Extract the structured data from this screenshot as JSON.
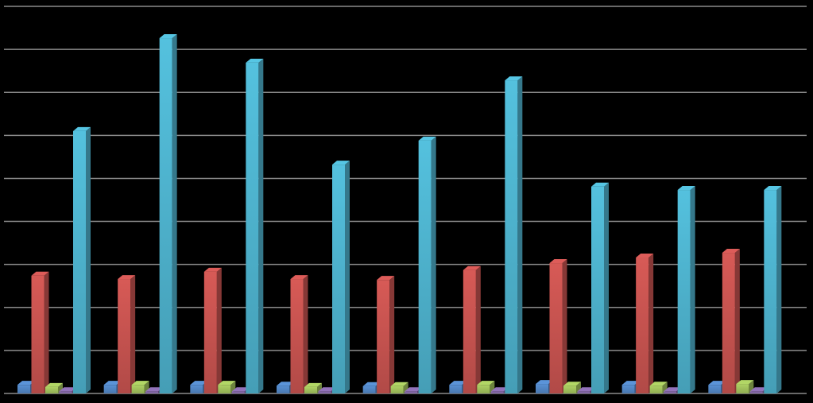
{
  "chart_data": {
    "type": "bar3d",
    "categories": [
      null,
      null,
      null,
      null,
      null,
      null,
      null,
      null,
      null
    ],
    "series": [
      {
        "color": "#4f81bd",
        "values": [
          0.2,
          0.2,
          0.2,
          0.18,
          0.17,
          0.2,
          0.22,
          0.2,
          0.2
        ]
      },
      {
        "color": "#c0504d",
        "values": [
          2.74,
          2.66,
          2.83,
          2.66,
          2.64,
          2.87,
          3.03,
          3.16,
          3.27
        ]
      },
      {
        "color": "#9bbb59",
        "values": [
          0.15,
          0.2,
          0.2,
          0.15,
          0.17,
          0.2,
          0.18,
          0.18,
          0.22
        ]
      },
      {
        "color": "#8064a2",
        "values": [
          0.05,
          0.05,
          0.05,
          0.05,
          0.05,
          0.05,
          0.05,
          0.05,
          0.05
        ]
      },
      {
        "color": "#4bacc6",
        "values": [
          6.1,
          8.26,
          7.69,
          5.32,
          5.88,
          7.28,
          4.81,
          4.73,
          4.73
        ]
      }
    ],
    "ylim": [
      0,
      9
    ],
    "yticks": [
      0,
      1,
      2,
      3,
      4,
      5,
      6,
      7,
      8,
      9
    ],
    "grid": true
  }
}
